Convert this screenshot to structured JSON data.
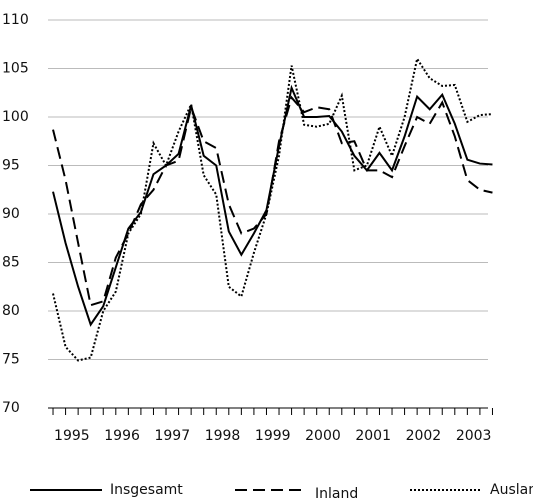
{
  "chart_data": {
    "type": "line",
    "x": [
      1995,
      1995.25,
      1995.5,
      1995.75,
      1996,
      1996.25,
      1996.5,
      1996.75,
      1997,
      1997.25,
      1997.5,
      1997.75,
      1998,
      1998.25,
      1998.5,
      1998.75,
      1999,
      1999.25,
      1999.5,
      1999.75,
      2000,
      2000.25,
      2000.5,
      2000.75,
      2001,
      2001.25,
      2001.5,
      2001.75,
      2002,
      2002.25,
      2002.5,
      2002.75,
      2003,
      2003.25,
      2003.5,
      2003.75
    ],
    "series": [
      {
        "name": "Insgesamt",
        "color": "#000000",
        "dash": "none",
        "values": [
          92.3,
          87,
          82.5,
          78.6,
          80.5,
          84.5,
          88.5,
          90.2,
          94.1,
          95,
          96.2,
          101.2,
          96,
          95,
          88.2,
          85.8,
          88,
          90.4,
          97,
          103,
          100,
          100,
          100.1,
          98.5,
          96,
          94.5,
          96.3,
          94.5,
          98,
          102.1,
          100.8,
          102.3,
          99.3,
          95.6,
          95.2,
          95.1
        ]
      },
      {
        "name": "Inland",
        "color": "#000000",
        "dash": "12 6",
        "values": [
          98.7,
          93.5,
          87,
          80.6,
          81,
          85.5,
          88,
          91,
          92.5,
          95,
          95.5,
          101,
          97.5,
          96.8,
          91,
          88,
          88.5,
          90,
          97.5,
          102,
          100.5,
          101,
          100.8,
          97.3,
          97.5,
          94.5,
          94.5,
          93.8,
          97,
          100,
          99.3,
          101.5,
          98,
          93.5,
          92.5,
          92.2
        ]
      },
      {
        "name": "Ausland",
        "color": "#000000",
        "dash": "2 2",
        "values": [
          81.8,
          76.3,
          74.9,
          75.2,
          80,
          82,
          88,
          90,
          97.3,
          95,
          98.5,
          101.3,
          94,
          92,
          82.5,
          81.5,
          86,
          90,
          96,
          105.3,
          99.2,
          99,
          99.3,
          102.2,
          94.5,
          95,
          99,
          96,
          100,
          106,
          104,
          103.2,
          103.3,
          99.5,
          100.2,
          100.3
        ]
      }
    ],
    "xlim": [
      1994.9,
      2003.9
    ],
    "xticks": [
      {
        "value": 1995.375,
        "label": "1995"
      },
      {
        "value": 1996.375,
        "label": "1996"
      },
      {
        "value": 1997.375,
        "label": "1997"
      },
      {
        "value": 1998.375,
        "label": "1998"
      },
      {
        "value": 1999.375,
        "label": "1999"
      },
      {
        "value": 2000.375,
        "label": "2000"
      },
      {
        "value": 2001.375,
        "label": "2001"
      },
      {
        "value": 2002.375,
        "label": "2002"
      },
      {
        "value": 2003.375,
        "label": "2003"
      }
    ],
    "minor_xticks": [
      1995,
      1995.25,
      1995.5,
      1995.75,
      1996,
      1996.25,
      1996.5,
      1996.75,
      1997,
      1997.25,
      1997.5,
      1997.75,
      1998,
      1998.25,
      1998.5,
      1998.75,
      1999,
      1999.25,
      1999.5,
      1999.75,
      2000,
      2000.25,
      2000.5,
      2000.75,
      2001,
      2001.25,
      2001.5,
      2001.75,
      2002,
      2002.25,
      2002.5,
      2002.75,
      2003,
      2003.25,
      2003.5,
      2003.75
    ],
    "ylim": [
      70,
      110
    ],
    "yticks": [
      70,
      75,
      80,
      85,
      90,
      95,
      100,
      105,
      110
    ],
    "grid": true,
    "legend": "bottom"
  }
}
